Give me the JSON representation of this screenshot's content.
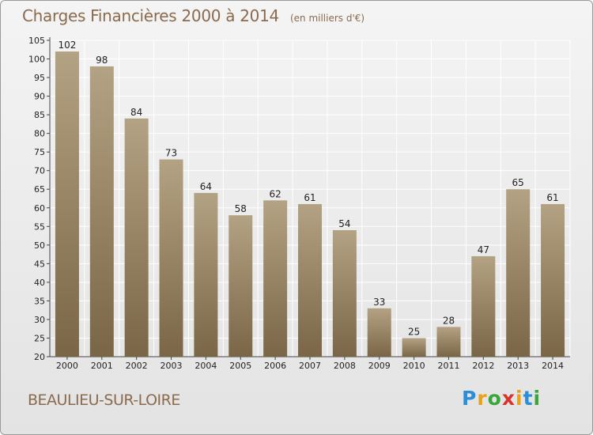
{
  "header": {
    "title": "Charges Financières 2000 à 2014",
    "subtitle": "(en milliers d'€)"
  },
  "footer": {
    "place": "BEAULIEU-SUR-LOIRE",
    "logo_letters": [
      "P",
      "r",
      "o",
      "x",
      "i",
      "t",
      "i"
    ],
    "logo_colors": [
      "#2a8fd6",
      "#e8a21a",
      "#3aa63a",
      "#d8322a",
      "#e8a21a",
      "#2a8fd6",
      "#3aa63a"
    ]
  },
  "chart_data": {
    "type": "bar",
    "title": "Charges Financières 2000 à 2014",
    "subtitle": "(en milliers d'€)",
    "categories": [
      "2000",
      "2001",
      "2002",
      "2003",
      "2004",
      "2005",
      "2006",
      "2007",
      "2008",
      "2009",
      "2010",
      "2011",
      "2012",
      "2013",
      "2014"
    ],
    "values": [
      102,
      98,
      84,
      73,
      64,
      58,
      62,
      61,
      54,
      33,
      25,
      28,
      47,
      65,
      61
    ],
    "ylim": [
      20,
      105
    ],
    "yticks": [
      20,
      25,
      30,
      35,
      40,
      45,
      50,
      55,
      60,
      65,
      70,
      75,
      80,
      85,
      90,
      95,
      100,
      105
    ],
    "grid": true,
    "bar_color_top": "#b3a283",
    "bar_color_bottom": "#7a6647"
  }
}
